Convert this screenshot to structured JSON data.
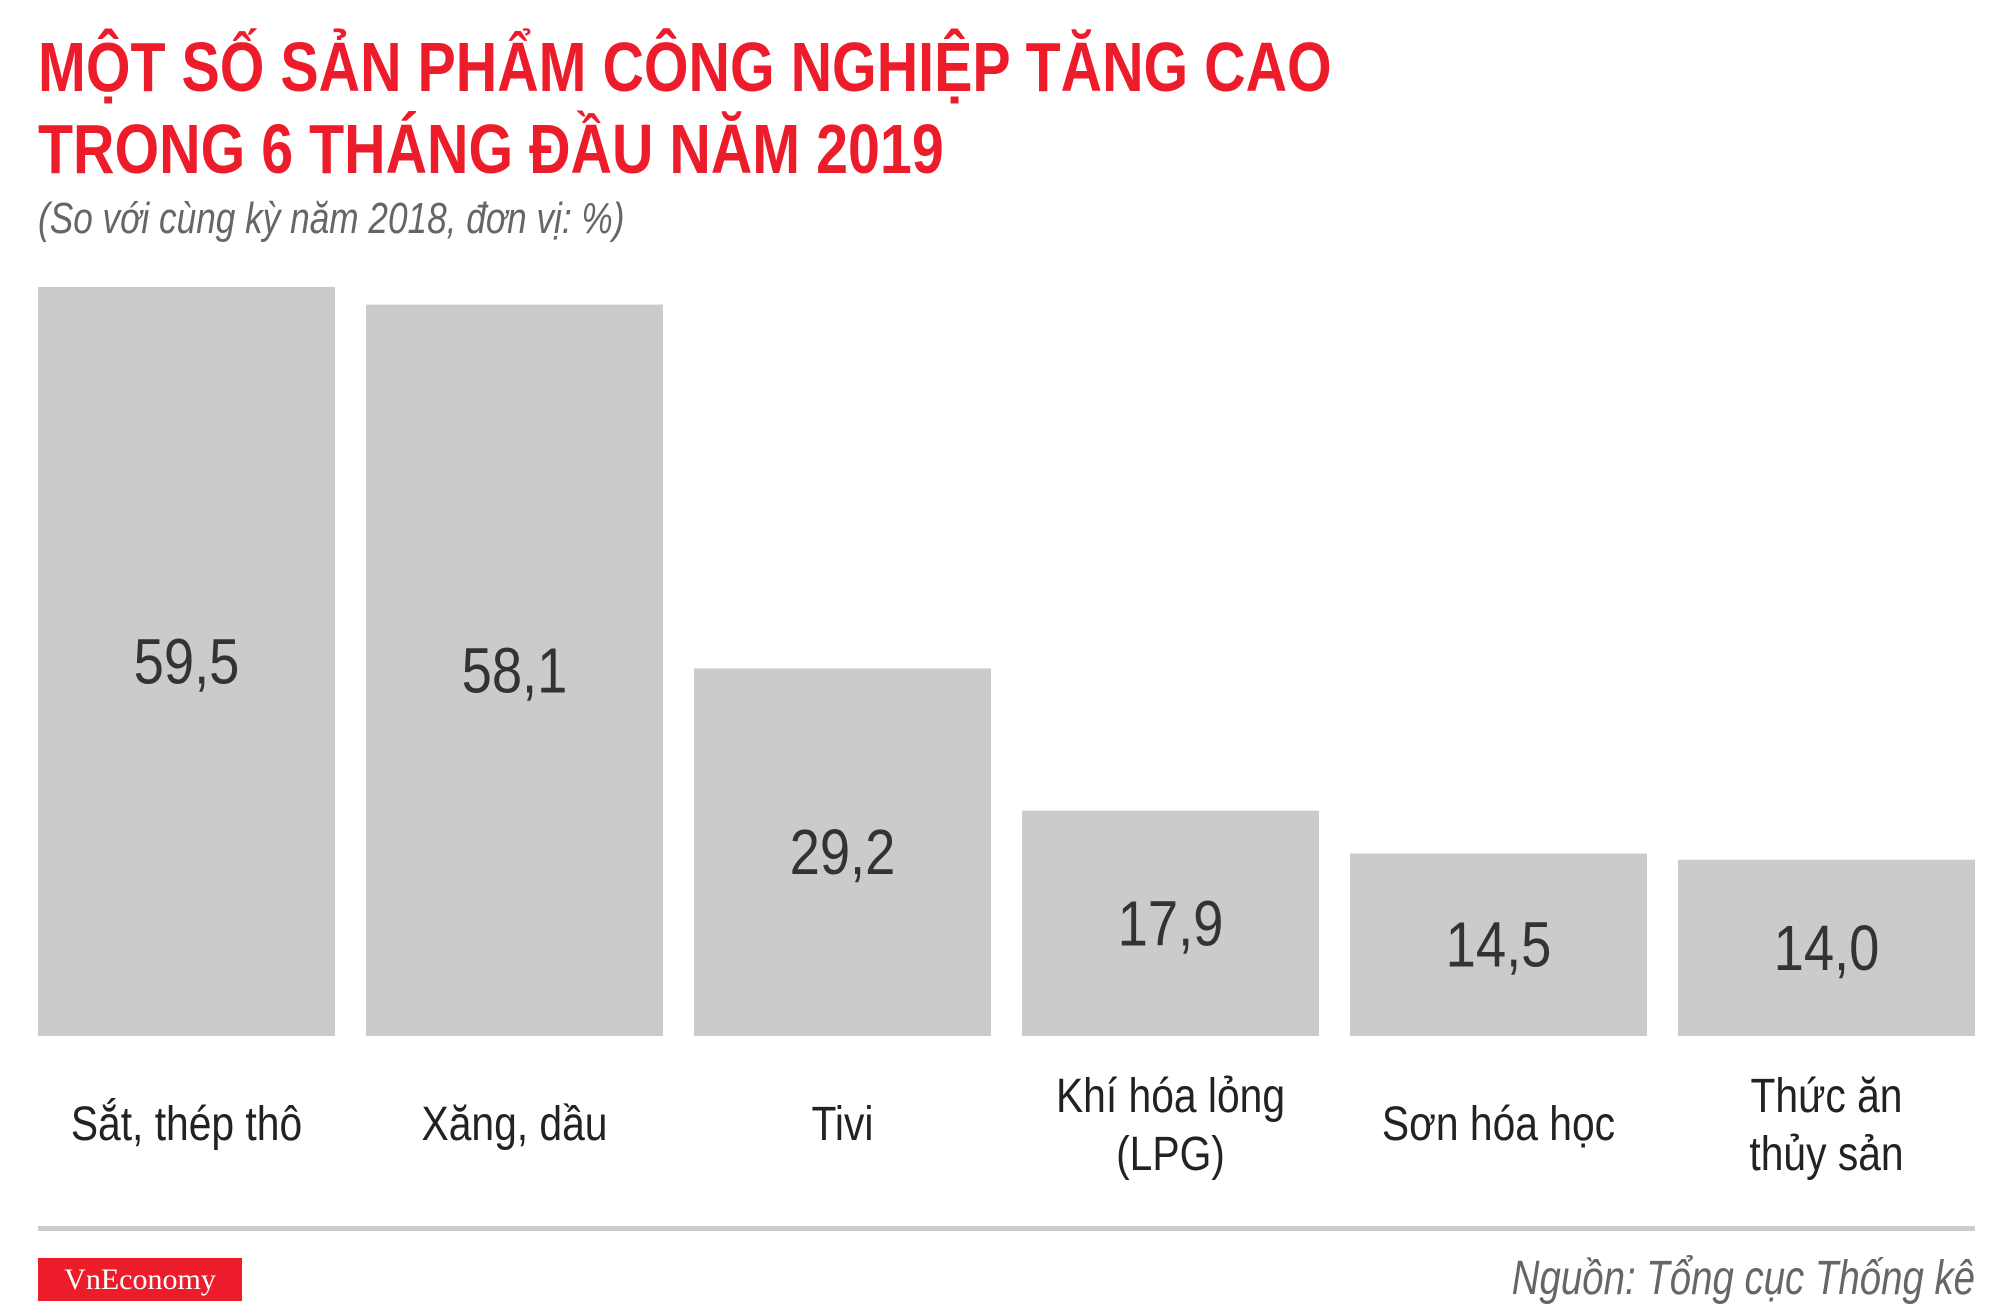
{
  "title_line1": "MỘT SỐ SẢN PHẨM CÔNG NGHIỆP TĂNG CAO",
  "title_line2": "TRONG 6 THÁNG ĐẦU NĂM 2019",
  "subtitle": "(So với cùng kỳ năm 2018, đơn vị: %)",
  "source": "Nguồn: Tổng cục Thống kê",
  "logo": "VnEconomy",
  "colors": {
    "title": "#ec1c2b",
    "bar": "#cccbcc",
    "value_text": "#333333",
    "logo_bg": "#ec1c2b"
  },
  "chart_data": {
    "type": "bar",
    "title": "MỘT SỐ SẢN PHẨM CÔNG NGHIỆP TĂNG CAO TRONG 6 THÁNG ĐẦU NĂM 2019",
    "subtitle": "(So với cùng kỳ năm 2018, đơn vị: %)",
    "categories": [
      [
        "Sắt, thép thô"
      ],
      [
        "Xăng, dầu"
      ],
      [
        "Tivi"
      ],
      [
        "Khí hóa lỏng",
        "(LPG)"
      ],
      [
        "Sơn hóa học"
      ],
      [
        "Thức ăn",
        "thủy sản"
      ]
    ],
    "values": [
      59.5,
      58.1,
      29.2,
      17.9,
      14.5,
      14.0
    ],
    "value_labels": [
      "59,5",
      "58,1",
      "29,2",
      "17,9",
      "14,5",
      "14,0"
    ],
    "ylim": [
      0,
      59.5
    ],
    "grid": false,
    "axes_visible": false
  }
}
